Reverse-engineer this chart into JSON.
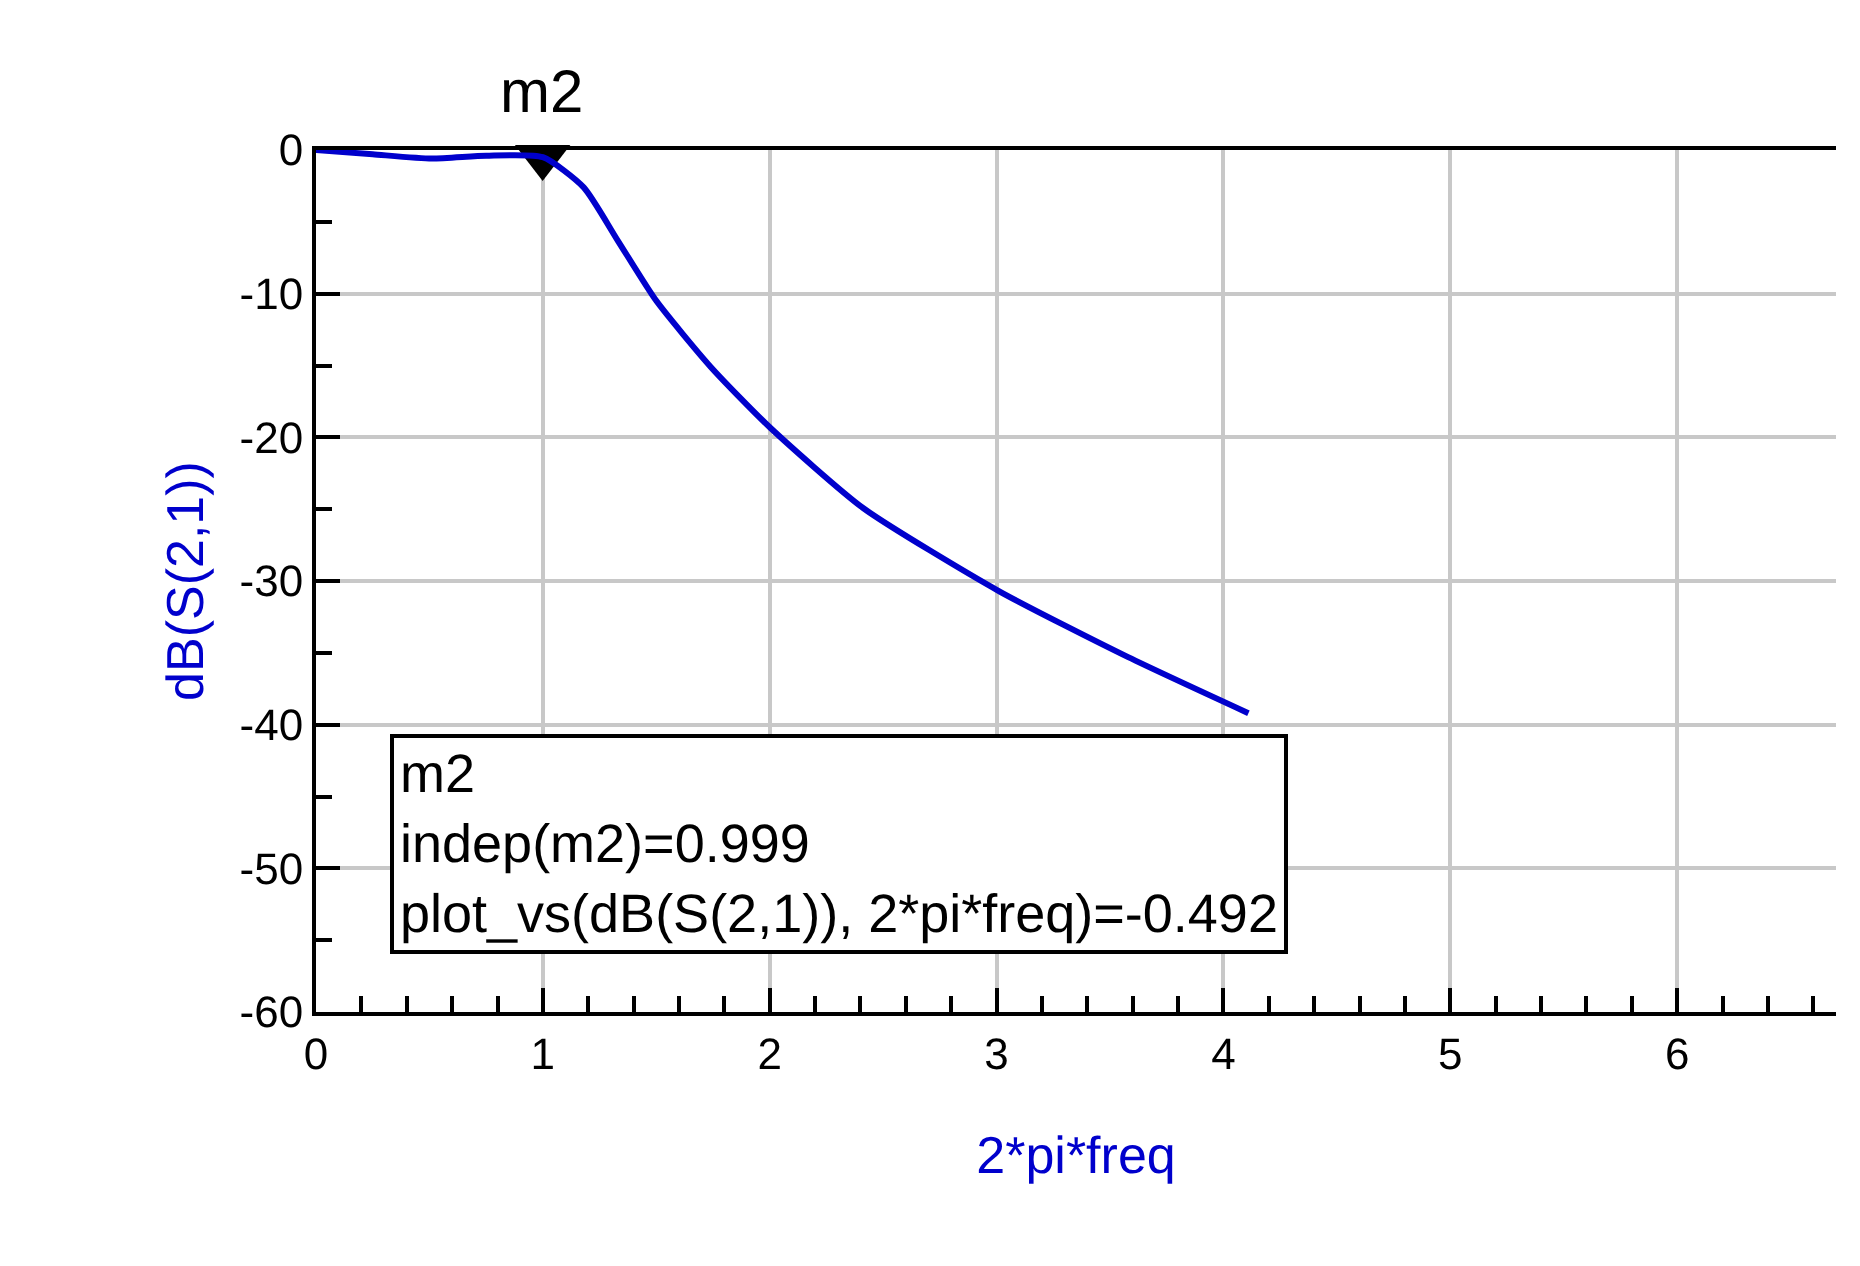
{
  "chart_data": {
    "type": "line",
    "xlabel": "2*pi*freq",
    "ylabel": "dB(S(2,1))",
    "x": [
      0,
      0.25,
      0.51,
      0.75,
      1.0,
      1.18,
      1.33,
      1.5,
      1.74,
      2.0,
      2.41,
      3.01,
      3.58,
      4.11
    ],
    "series": [
      {
        "color": "#0000cc",
        "values": [
          0,
          -0.3,
          -0.6,
          -0.4,
          -0.5,
          -2.6,
          -6.3,
          -10.5,
          -15.1,
          -19.3,
          -24.9,
          -30.7,
          -35.3,
          -39.2
        ]
      },
      {
        "type": "scatter",
        "x": [
          0.999
        ],
        "values": [
          -0.492
        ],
        "color": "#000000",
        "marker": "triangle"
      }
    ],
    "xlim": [
      0,
      6.7
    ],
    "ylim": [
      -60,
      0
    ],
    "xticks": [
      0,
      {
        "value": 0.2,
        "label": null
      },
      {
        "value": 0.4,
        "label": null
      },
      {
        "value": 0.6,
        "label": null
      },
      {
        "value": 0.8,
        "label": null
      },
      1,
      {
        "value": 1.2,
        "label": null
      },
      {
        "value": 1.4,
        "label": null
      },
      {
        "value": 1.6,
        "label": null
      },
      {
        "value": 1.8,
        "label": null
      },
      2,
      {
        "value": 2.2,
        "label": null
      },
      {
        "value": 2.4,
        "label": null
      },
      {
        "value": 2.6,
        "label": null
      },
      {
        "value": 2.8,
        "label": null
      },
      3,
      {
        "value": 3.2,
        "label": null
      },
      {
        "value": 3.4,
        "label": null
      },
      {
        "value": 3.6,
        "label": null
      },
      {
        "value": 3.8,
        "label": null
      },
      4,
      {
        "value": 4.2,
        "label": null
      },
      {
        "value": 4.4,
        "label": null
      },
      {
        "value": 4.6,
        "label": null
      },
      {
        "value": 4.8,
        "label": null
      },
      5,
      {
        "value": 5.2,
        "label": null
      },
      {
        "value": 5.4,
        "label": null
      },
      {
        "value": 5.6,
        "label": null
      },
      {
        "value": 5.8,
        "label": null
      },
      6,
      {
        "value": 6.2,
        "label": null
      },
      {
        "value": 6.4,
        "label": null
      },
      {
        "value": 6.6,
        "label": null
      }
    ],
    "yticks": [
      -60,
      {
        "value": -55,
        "label": null
      },
      -50,
      {
        "value": -45,
        "label": null
      },
      -40,
      {
        "value": -35,
        "label": null
      },
      -30,
      {
        "value": -25,
        "label": null
      },
      -20,
      {
        "value": -15,
        "label": null
      },
      -10,
      {
        "value": -5,
        "label": null
      },
      0
    ],
    "grid": true,
    "marker": "none",
    "line_style": "solid",
    "annotations": [
      {
        "text": "m2",
        "x": 0.999,
        "y": -0.492
      },
      "m2\nindep(m2)=0.999\nplot_vs(dB(S(2,1)), 2*pi*freq)=-0.492"
    ]
  }
}
